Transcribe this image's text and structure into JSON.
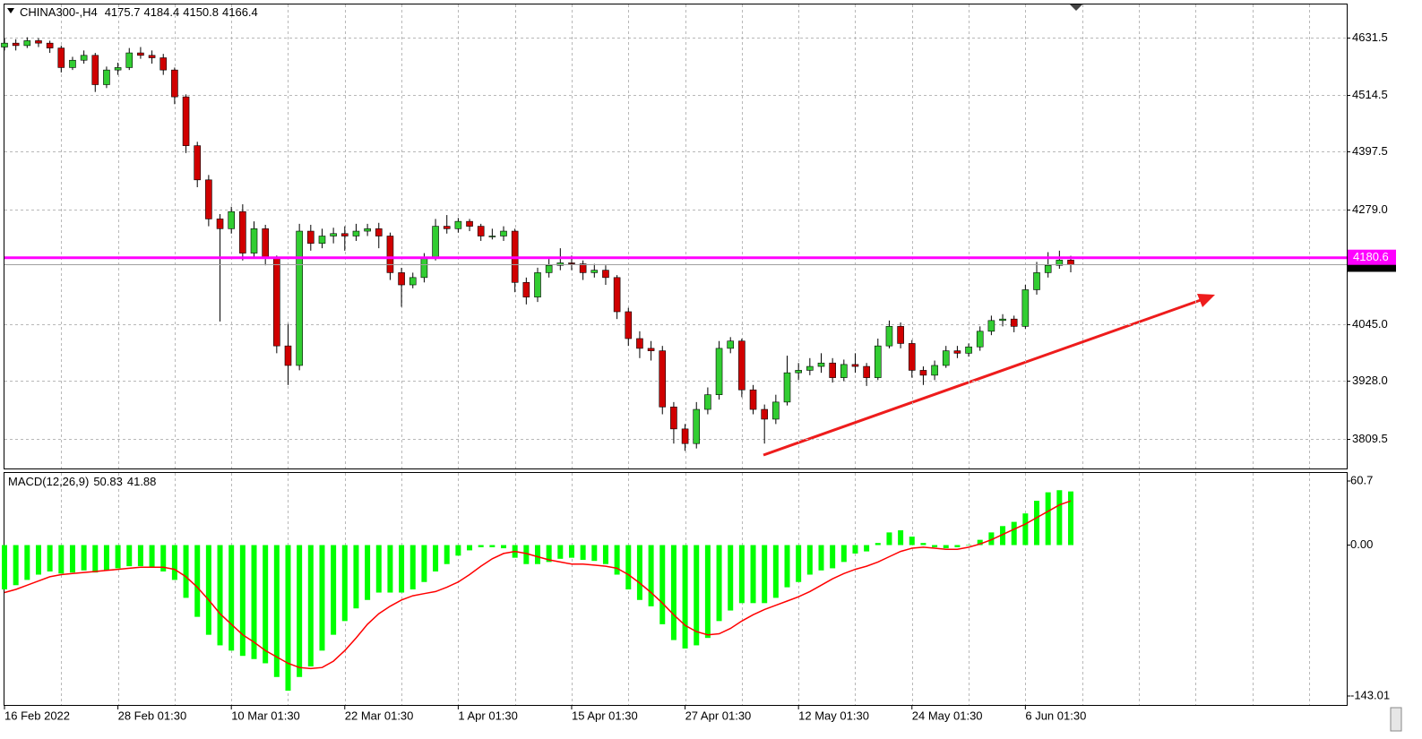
{
  "chart_data": [
    {
      "type": "candlestick",
      "title": "CHINA300-,H4",
      "categories": [
        "16 Feb 2022",
        null,
        null,
        null,
        null,
        null,
        null,
        null,
        null,
        null,
        "28 Feb 01:30",
        null,
        null,
        null,
        null,
        null,
        null,
        null,
        null,
        null,
        "10 Mar 01:30",
        null,
        null,
        null,
        null,
        null,
        null,
        null,
        null,
        null,
        "22 Mar 01:30",
        null,
        null,
        null,
        null,
        null,
        null,
        null,
        null,
        null,
        "1 Apr 01:30",
        null,
        null,
        null,
        null,
        null,
        null,
        null,
        null,
        null,
        "15 Apr 01:30",
        null,
        null,
        null,
        null,
        null,
        null,
        null,
        null,
        null,
        "27 Apr 01:30",
        null,
        null,
        null,
        null,
        null,
        null,
        null,
        null,
        null,
        "12 May 01:30",
        null,
        null,
        null,
        null,
        null,
        null,
        null,
        null,
        null,
        "24 May 01:30",
        null,
        null,
        null,
        null,
        null,
        null,
        null,
        null,
        null,
        "6 Jun 01:30",
        null,
        null,
        null,
        null
      ],
      "ohlc": [
        [
          4612,
          4630,
          4605,
          4620
        ],
        [
          4620,
          4628,
          4605,
          4615
        ],
        [
          4615,
          4632,
          4610,
          4625
        ],
        [
          4625,
          4630,
          4612,
          4620
        ],
        [
          4620,
          4625,
          4600,
          4610
        ],
        [
          4610,
          4615,
          4560,
          4570
        ],
        [
          4570,
          4592,
          4565,
          4585
        ],
        [
          4585,
          4605,
          4578,
          4595
        ],
        [
          4595,
          4600,
          4520,
          4535
        ],
        [
          4535,
          4572,
          4528,
          4565
        ],
        [
          4565,
          4580,
          4555,
          4570
        ],
        [
          4570,
          4610,
          4565,
          4600
        ],
        [
          4600,
          4612,
          4588,
          4595
        ],
        [
          4595,
          4605,
          4578,
          4590
        ],
        [
          4590,
          4598,
          4555,
          4565
        ],
        [
          4565,
          4570,
          4495,
          4510
        ],
        [
          4510,
          4515,
          4395,
          4410
        ],
        [
          4410,
          4418,
          4325,
          4340
        ],
        [
          4340,
          4350,
          4245,
          4260
        ],
        [
          4260,
          4270,
          4050,
          4240
        ],
        [
          4240,
          4285,
          4230,
          4275
        ],
        [
          4275,
          4290,
          4175,
          4190
        ],
        [
          4190,
          4255,
          4180,
          4240
        ],
        [
          4240,
          4248,
          4165,
          4180
        ],
        [
          4180,
          4185,
          3985,
          4000
        ],
        [
          4000,
          4045,
          3920,
          3960
        ],
        [
          3960,
          4250,
          3950,
          4235
        ],
        [
          4235,
          4248,
          4195,
          4210
        ],
        [
          4210,
          4240,
          4200,
          4225
        ],
        [
          4225,
          4242,
          4210,
          4230
        ],
        [
          4230,
          4245,
          4195,
          4225
        ],
        [
          4225,
          4250,
          4215,
          4235
        ],
        [
          4235,
          4250,
          4225,
          4240
        ],
        [
          4240,
          4252,
          4200,
          4225
        ],
        [
          4225,
          4232,
          4135,
          4150
        ],
        [
          4150,
          4160,
          4080,
          4125
        ],
        [
          4125,
          4150,
          4118,
          4140
        ],
        [
          4140,
          4190,
          4130,
          4180
        ],
        [
          4180,
          4260,
          4175,
          4245
        ],
        [
          4245,
          4268,
          4230,
          4240
        ],
        [
          4240,
          4262,
          4232,
          4255
        ],
        [
          4255,
          4260,
          4235,
          4245
        ],
        [
          4245,
          4250,
          4215,
          4225
        ],
        [
          4225,
          4240,
          4218,
          4225
        ],
        [
          4225,
          4245,
          4215,
          4235
        ],
        [
          4235,
          4240,
          4110,
          4130
        ],
        [
          4130,
          4140,
          4085,
          4100
        ],
        [
          4100,
          4160,
          4090,
          4150
        ],
        [
          4150,
          4178,
          4140,
          4165
        ],
        [
          4165,
          4200,
          4155,
          4170
        ],
        [
          4170,
          4185,
          4155,
          4168
        ],
        [
          4168,
          4175,
          4135,
          4150
        ],
        [
          4150,
          4168,
          4140,
          4155
        ],
        [
          4155,
          4165,
          4125,
          4140
        ],
        [
          4140,
          4145,
          4055,
          4070
        ],
        [
          4070,
          4078,
          4000,
          4015
        ],
        [
          4015,
          4030,
          3975,
          3995
        ],
        [
          3995,
          4010,
          3970,
          3990
        ],
        [
          3990,
          4000,
          3860,
          3875
        ],
        [
          3875,
          3885,
          3800,
          3830
        ],
        [
          3830,
          3840,
          3785,
          3800
        ],
        [
          3800,
          3885,
          3790,
          3870
        ],
        [
          3870,
          3915,
          3860,
          3900
        ],
        [
          3900,
          4010,
          3890,
          3995
        ],
        [
          3995,
          4018,
          3985,
          4010
        ],
        [
          4010,
          4015,
          3895,
          3910
        ],
        [
          3910,
          3920,
          3860,
          3870
        ],
        [
          3870,
          3880,
          3800,
          3850
        ],
        [
          3850,
          3900,
          3840,
          3885
        ],
        [
          3885,
          3980,
          3878,
          3945
        ],
        [
          3945,
          3965,
          3930,
          3950
        ],
        [
          3950,
          3975,
          3940,
          3958
        ],
        [
          3958,
          3985,
          3945,
          3965
        ],
        [
          3965,
          3975,
          3925,
          3935
        ],
        [
          3935,
          3972,
          3928,
          3962
        ],
        [
          3962,
          3985,
          3945,
          3958
        ],
        [
          3958,
          3965,
          3918,
          3935
        ],
        [
          3935,
          4015,
          3930,
          4000
        ],
        [
          4000,
          4052,
          3995,
          4040
        ],
        [
          4040,
          4048,
          3995,
          4005
        ],
        [
          4005,
          4012,
          3935,
          3950
        ],
        [
          3950,
          3958,
          3920,
          3940
        ],
        [
          3940,
          3970,
          3930,
          3960
        ],
        [
          3960,
          4000,
          3955,
          3990
        ],
        [
          3990,
          4000,
          3975,
          3985
        ],
        [
          3985,
          4005,
          3978,
          3998
        ],
        [
          3998,
          4040,
          3990,
          4030
        ],
        [
          4030,
          4062,
          4022,
          4052
        ],
        [
          4052,
          4065,
          4040,
          4055
        ],
        [
          4055,
          4062,
          4028,
          4040
        ],
        [
          4040,
          4125,
          4035,
          4115
        ],
        [
          4115,
          4172,
          4105,
          4150
        ],
        [
          4150,
          4192,
          4140,
          4165
        ],
        [
          4165,
          4195,
          4158,
          4175.7
        ],
        [
          4175.7,
          4184.4,
          4150.8,
          4166.4
        ]
      ],
      "up_color": "#32cd32",
      "down_color": "#d00000",
      "ylim": [
        3749,
        4701
      ],
      "yticks": [
        4631.5,
        4514.5,
        4397.5,
        {
          "value": 4279,
          "label": "4279.0"
        },
        {
          "value": 4045,
          "label": "4045.0"
        },
        {
          "value": 3928,
          "label": "3928.0"
        },
        3809.5
      ],
      "grid": true,
      "price_line": 4180.6,
      "price_line_color": "#ff00ff"
    },
    {
      "type": "macd",
      "title": "MACD(12,26,9)",
      "histogram": {
        "color": "#00ff00",
        "values": [
          -42,
          -38,
          -33,
          -28,
          -25,
          -27,
          -26,
          -24,
          -26,
          -24,
          -22,
          -20,
          -20,
          -21,
          -25,
          -33,
          -50,
          -68,
          -85,
          -95,
          -100,
          -105,
          -108,
          -112,
          -125,
          -138,
          -125,
          -115,
          -100,
          -85,
          -72,
          -60,
          -52,
          -45,
          -45,
          -45,
          -42,
          -35,
          -25,
          -18,
          -10,
          -5,
          -2,
          -2,
          -3,
          -12,
          -18,
          -18,
          -16,
          -13,
          -12,
          -14,
          -15,
          -18,
          -28,
          -42,
          -52,
          -58,
          -75,
          -90,
          -98,
          -95,
          -88,
          -72,
          -62,
          -55,
          -55,
          -55,
          -50,
          -40,
          -35,
          -28,
          -24,
          -22,
          -16,
          -8,
          -6,
          2,
          12,
          14,
          8,
          2,
          -2,
          -3,
          -2,
          0,
          5,
          12,
          18,
          22,
          30,
          42,
          50,
          52,
          50.83
        ]
      },
      "signal": {
        "color": "#ff0000",
        "values": [
          -45,
          -42,
          -38,
          -34,
          -30,
          -28,
          -27,
          -26,
          -25,
          -24,
          -23,
          -22,
          -21,
          -21,
          -21,
          -23,
          -30,
          -40,
          -52,
          -65,
          -75,
          -85,
          -92,
          -100,
          -106,
          -112,
          -116,
          -117,
          -116,
          -110,
          -100,
          -88,
          -75,
          -65,
          -58,
          -52,
          -48,
          -46,
          -44,
          -40,
          -35,
          -28,
          -20,
          -13,
          -8,
          -6,
          -8,
          -11,
          -14,
          -16,
          -18,
          -18,
          -19,
          -20,
          -22,
          -28,
          -36,
          -45,
          -55,
          -66,
          -76,
          -82,
          -85,
          -84,
          -79,
          -72,
          -66,
          -61,
          -57,
          -53,
          -49,
          -44,
          -38,
          -32,
          -27,
          -23,
          -20,
          -16,
          -11,
          -6,
          -3,
          -2,
          -3,
          -4,
          -4,
          -2,
          1,
          5,
          10,
          15,
          20,
          26,
          32,
          38,
          41.88
        ]
      },
      "ylim": [
        -143.01,
        60.7
      ],
      "yticks": [
        60.7,
        {
          "value": 0,
          "label": "0.00"
        },
        -143.01
      ]
    }
  ]
}
